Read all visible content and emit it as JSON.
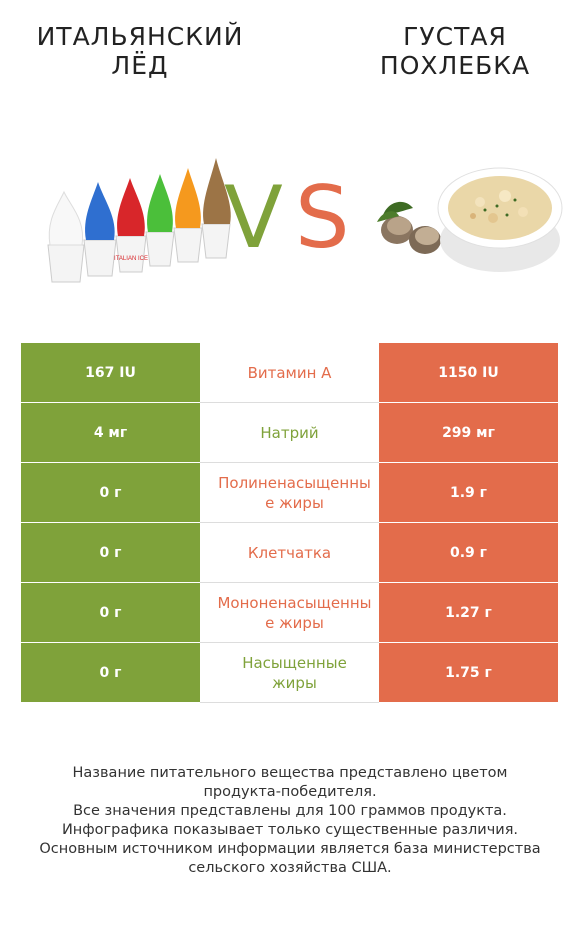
{
  "header": {
    "left_title_line1": "ИТАЛЬЯНСКИЙ",
    "left_title_line2": "ЛЁД",
    "right_title_line1": "ГУСТАЯ",
    "right_title_line2": "ПОХЛЕБКА",
    "vs_v": "V",
    "vs_s": "S"
  },
  "colors": {
    "left_winner": "#7fa23a",
    "right_winner": "#e36c4b"
  },
  "chart_data": {
    "type": "table",
    "columns": [
      "Итальянский лёд",
      "Густая похлебка"
    ],
    "rows": [
      {
        "nutrient": "Витамин A",
        "left": "167 IU",
        "right": "1150 IU",
        "winner": "right"
      },
      {
        "nutrient": "Натрий",
        "left": "4 мг",
        "right": "299 мг",
        "winner": "left"
      },
      {
        "nutrient": "Полиненасыщенные жиры",
        "left": "0 г",
        "right": "1.9 г",
        "winner": "right"
      },
      {
        "nutrient": "Клетчатка",
        "left": "0 г",
        "right": "0.9 г",
        "winner": "right"
      },
      {
        "nutrient": "Мононенасыщенные жиры",
        "left": "0 г",
        "right": "1.27 г",
        "winner": "right"
      },
      {
        "nutrient": "Насыщенные жиры",
        "left": "0 г",
        "right": "1.75 г",
        "winner": "left"
      }
    ]
  },
  "footer": {
    "line1": "Название питательного вещества представлено цветом",
    "line2": "продукта-победителя.",
    "line3": "Все значения представлены для 100 граммов продукта.",
    "line4": "Инфографика показывает только существенные различия.",
    "line5": "Основным источником информации является база министерства",
    "line6": "сельского хозяйства США."
  }
}
